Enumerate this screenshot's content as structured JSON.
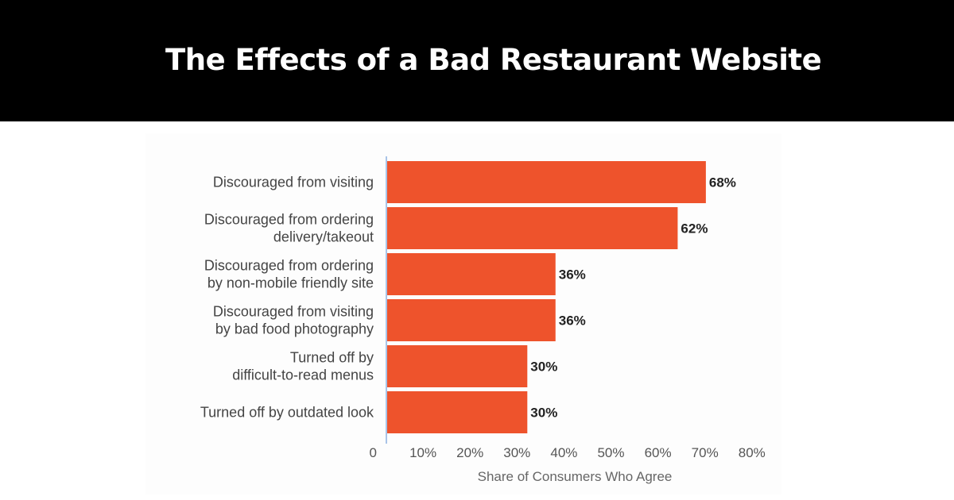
{
  "header": {
    "title": "The Effects of a Bad Restaurant Website"
  },
  "colors": {
    "header_bg": "#000000",
    "bar": "#ee532c",
    "axis_line": "#a9c4e8"
  },
  "chart_data": {
    "type": "bar",
    "orientation": "horizontal",
    "categories": [
      [
        "Discouraged from visiting"
      ],
      [
        "Discouraged from ordering",
        "delivery/takeout"
      ],
      [
        "Discouraged from ordering",
        "by non-mobile friendly site"
      ],
      [
        "Discouraged from visiting",
        "by bad food photography"
      ],
      [
        "Turned off by",
        "difficult-to-read menus"
      ],
      [
        "Turned off by outdated look"
      ]
    ],
    "values": [
      68,
      62,
      36,
      36,
      30,
      30
    ],
    "value_labels": [
      "68%",
      "62%",
      "36%",
      "36%",
      "30%",
      "30%"
    ],
    "xlim": [
      0,
      80
    ],
    "xticks": [
      0,
      10,
      20,
      30,
      40,
      50,
      60,
      70,
      80
    ],
    "xtick_labels": [
      "0",
      "10%",
      "20%",
      "30%",
      "40%",
      "50%",
      "60%",
      "70%",
      "80%"
    ],
    "xlabel": "Share of Consumers Who Agree",
    "grid": false,
    "legend": false
  }
}
